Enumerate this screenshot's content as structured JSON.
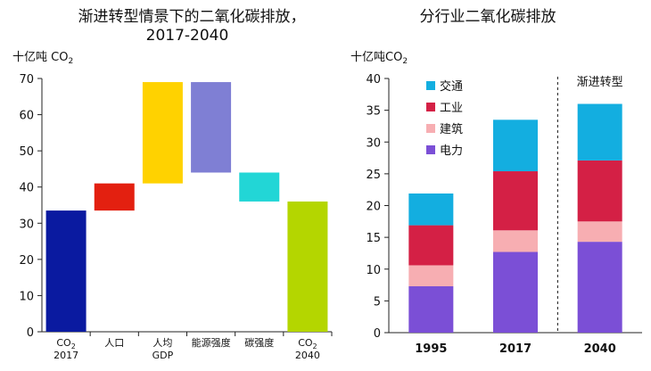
{
  "chart_data": [
    {
      "type": "bar",
      "subtype": "waterfall",
      "title": "渐进转型情景下的二氧化碳排放，",
      "subtitle": "2017-2040",
      "ylabel": "十亿吨 CO2",
      "ylim": [
        0,
        70
      ],
      "yticks": [
        "0",
        "10",
        "20",
        "30",
        "40",
        "50",
        "60",
        "70"
      ],
      "grid": false,
      "categories": [
        {
          "line1": "CO2",
          "line2": "2017"
        },
        {
          "line1": "人口",
          "line2": ""
        },
        {
          "line1": "人均",
          "line2": "GDP"
        },
        {
          "line1": "能源强度",
          "line2": ""
        },
        {
          "line1": "碳强度",
          "line2": ""
        },
        {
          "line1": "CO2",
          "line2": "2040"
        }
      ],
      "bars": [
        {
          "low": 0,
          "high": 33.5,
          "color": "#0A1AA0"
        },
        {
          "low": 33.5,
          "high": 41,
          "color": "#E32010"
        },
        {
          "low": 41,
          "high": 69,
          "color": "#FFD200"
        },
        {
          "low": 44,
          "high": 69,
          "color": "#7F7FD4"
        },
        {
          "low": 36,
          "high": 44,
          "color": "#22D6D6"
        },
        {
          "low": 0,
          "high": 36,
          "color": "#B4D600"
        }
      ]
    },
    {
      "type": "bar",
      "subtype": "stacked",
      "title": "分行业二氧化碳排放",
      "ylabel": "十亿吨CO2",
      "ylim": [
        0,
        40
      ],
      "yticks": [
        "0",
        "5",
        "10",
        "15",
        "20",
        "25",
        "30",
        "35",
        "40"
      ],
      "grid": false,
      "categories": [
        "1995",
        "2017",
        "2040"
      ],
      "annotation": "渐进转型",
      "legend_position": "top-left",
      "series": [
        {
          "name": "电力",
          "color": "#7B4FD6",
          "values": [
            7.3,
            12.7,
            14.3
          ]
        },
        {
          "name": "建筑",
          "color": "#F7AEB2",
          "values": [
            3.3,
            3.4,
            3.2
          ]
        },
        {
          "name": "工业",
          "color": "#D42045",
          "values": [
            6.3,
            9.3,
            9.6
          ]
        },
        {
          "name": "交通",
          "color": "#13AEE0",
          "values": [
            5.0,
            8.1,
            8.9
          ]
        }
      ]
    }
  ]
}
